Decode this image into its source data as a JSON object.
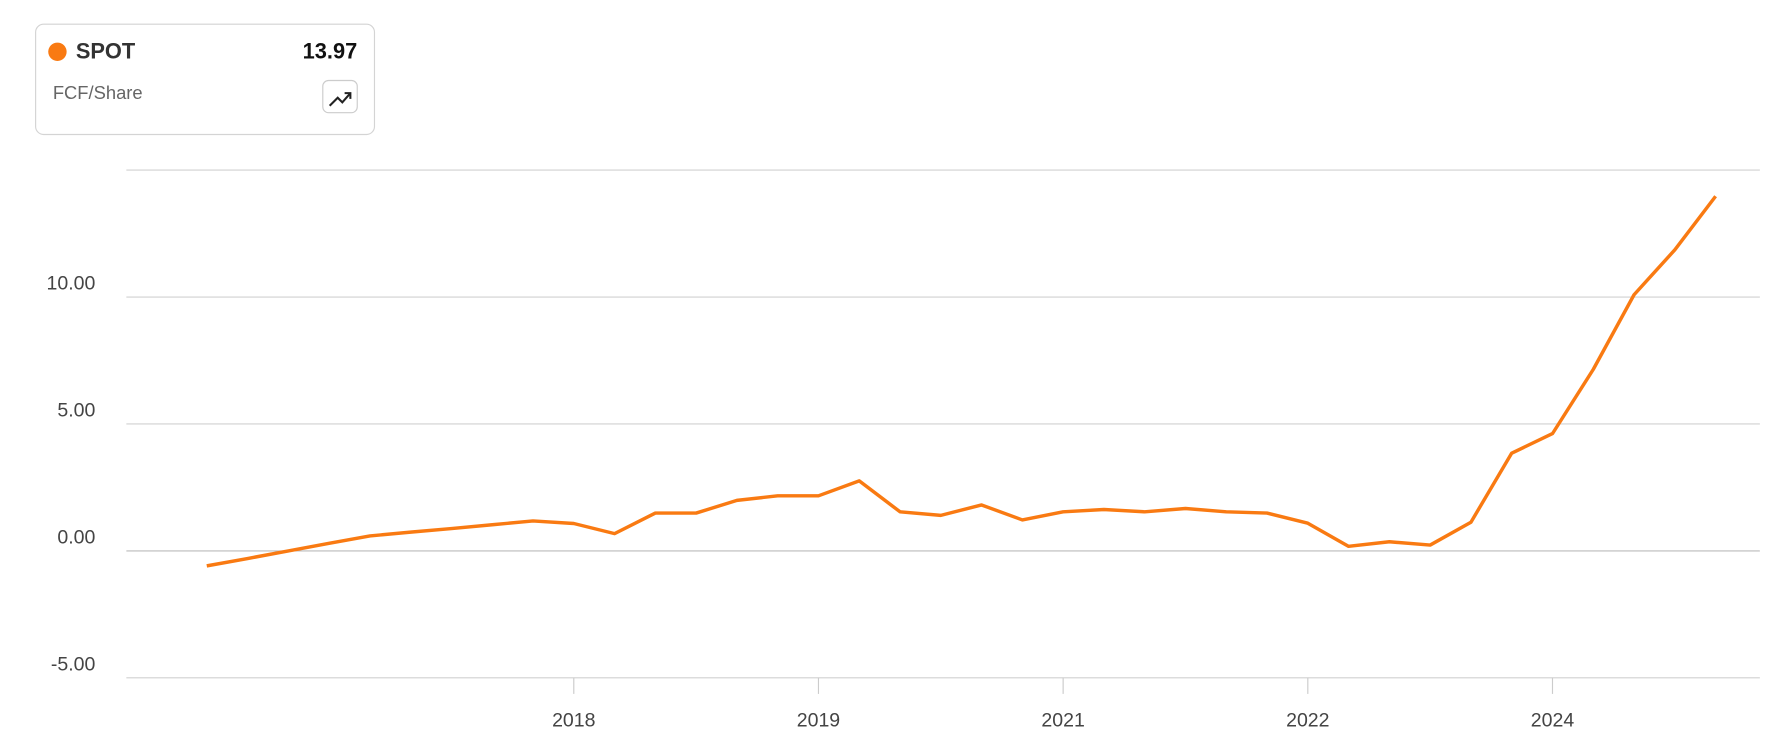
{
  "chart_data": {
    "type": "line",
    "metric": "FCF/Share",
    "last_value_label": "13.97",
    "categories": [
      null,
      null,
      null,
      null,
      null,
      null,
      null,
      null,
      null,
      "2018",
      null,
      null,
      null,
      null,
      null,
      "2019",
      null,
      null,
      null,
      null,
      null,
      "2021",
      null,
      null,
      null,
      null,
      null,
      "2022",
      null,
      null,
      null,
      null,
      null,
      "2024",
      null,
      null,
      null,
      null
    ],
    "series": [
      {
        "name": "SPOT",
        "color": "#f97a12",
        "values": [
          -0.59,
          -0.3,
          0.0,
          0.3,
          0.59,
          0.74,
          0.88,
          1.03,
          1.18,
          1.08,
          0.68,
          1.49,
          1.49,
          1.99,
          2.17,
          2.17,
          2.76,
          1.54,
          1.4,
          1.81,
          1.22,
          1.54,
          1.63,
          1.54,
          1.67,
          1.54,
          1.49,
          1.09,
          0.18,
          0.36,
          0.23,
          1.13,
          3.85,
          4.62,
          7.15,
          10.09,
          11.86,
          13.97
        ]
      }
    ],
    "ylim": [
      -5,
      15
    ],
    "yticks": [
      {
        "value": -5,
        "label": "-5.00"
      },
      {
        "value": 0,
        "label": "0.00"
      },
      {
        "value": 5,
        "label": "5.00"
      },
      {
        "value": 10,
        "label": "10.00"
      }
    ],
    "grid": true
  }
}
